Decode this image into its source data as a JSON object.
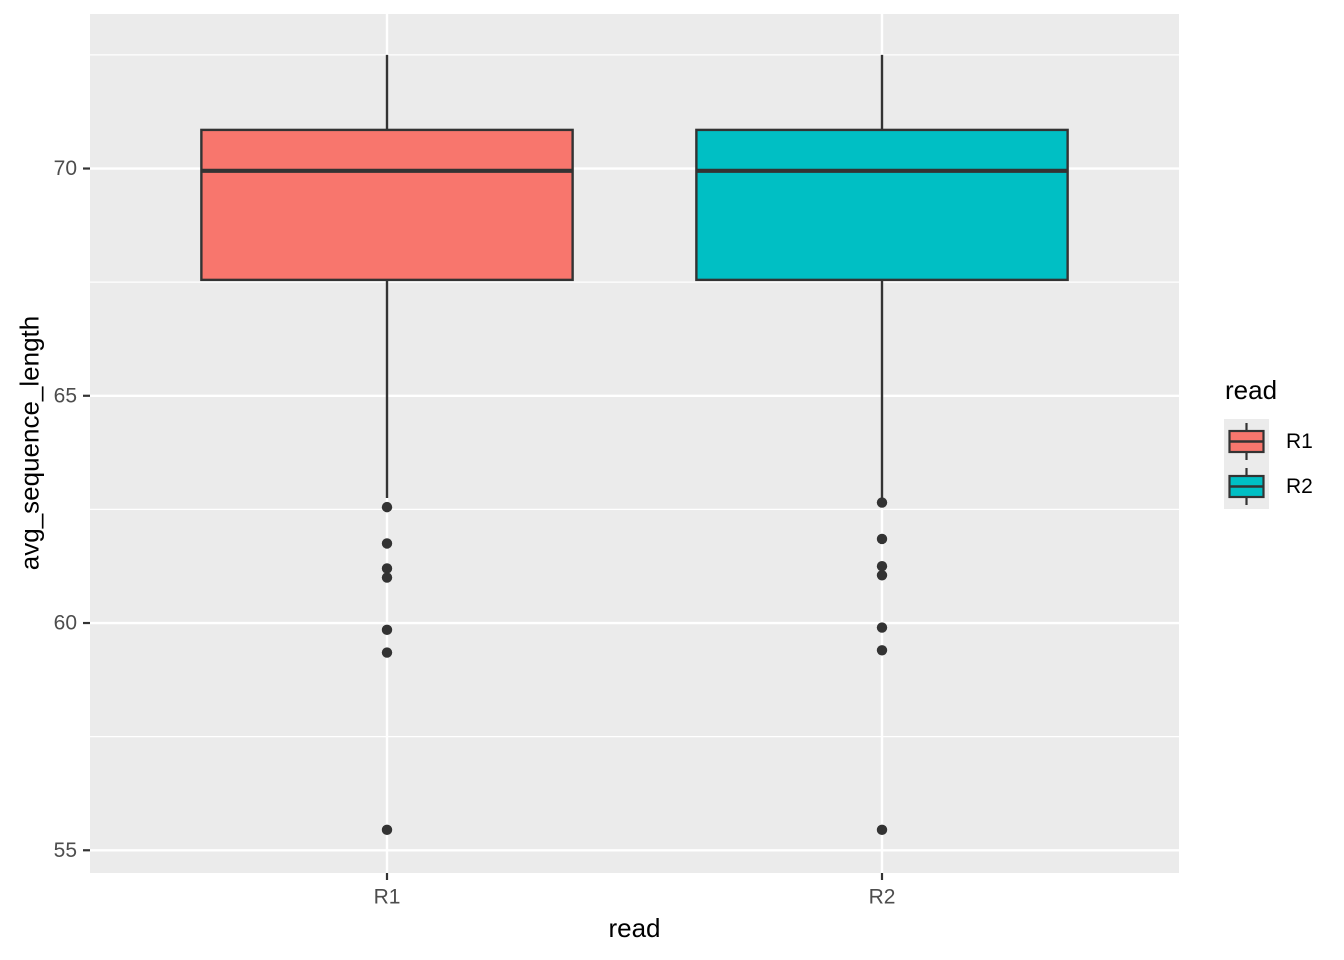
{
  "chart_data": {
    "type": "boxplot",
    "title": "",
    "xlabel": "read",
    "ylabel": "avg_sequence_length",
    "x_categories": [
      "R1",
      "R2"
    ],
    "y_ticks": [
      55,
      60,
      65,
      70
    ],
    "y_minor_ticks": [
      57.5,
      62.5,
      67.5,
      72.5
    ],
    "ylim": [
      54.5,
      73.4
    ],
    "grid": true,
    "panel_bg": "#EBEBEB",
    "grid_color": "#FFFFFF",
    "box_stroke": "#333333",
    "axis_text_color": "#4D4D4D",
    "box_width_fraction": 0.75,
    "series": [
      {
        "name": "R1",
        "fill": "#F8766D",
        "whisker_low": 62.75,
        "q1": 67.55,
        "median": 69.95,
        "q3": 70.85,
        "whisker_high": 72.5,
        "outliers": [
          62.55,
          61.75,
          61.2,
          61.0,
          59.85,
          59.35,
          55.45
        ]
      },
      {
        "name": "R2",
        "fill": "#00BFC4",
        "whisker_low": 62.75,
        "q1": 67.55,
        "median": 69.95,
        "q3": 70.85,
        "whisker_high": 72.5,
        "outliers": [
          62.65,
          61.85,
          61.25,
          61.05,
          59.9,
          59.4,
          55.45
        ]
      }
    ],
    "legend": {
      "title": "read",
      "position": "right",
      "entries": [
        {
          "label": "R1",
          "color": "#F8766D"
        },
        {
          "label": "R2",
          "color": "#00BFC4"
        }
      ]
    }
  }
}
